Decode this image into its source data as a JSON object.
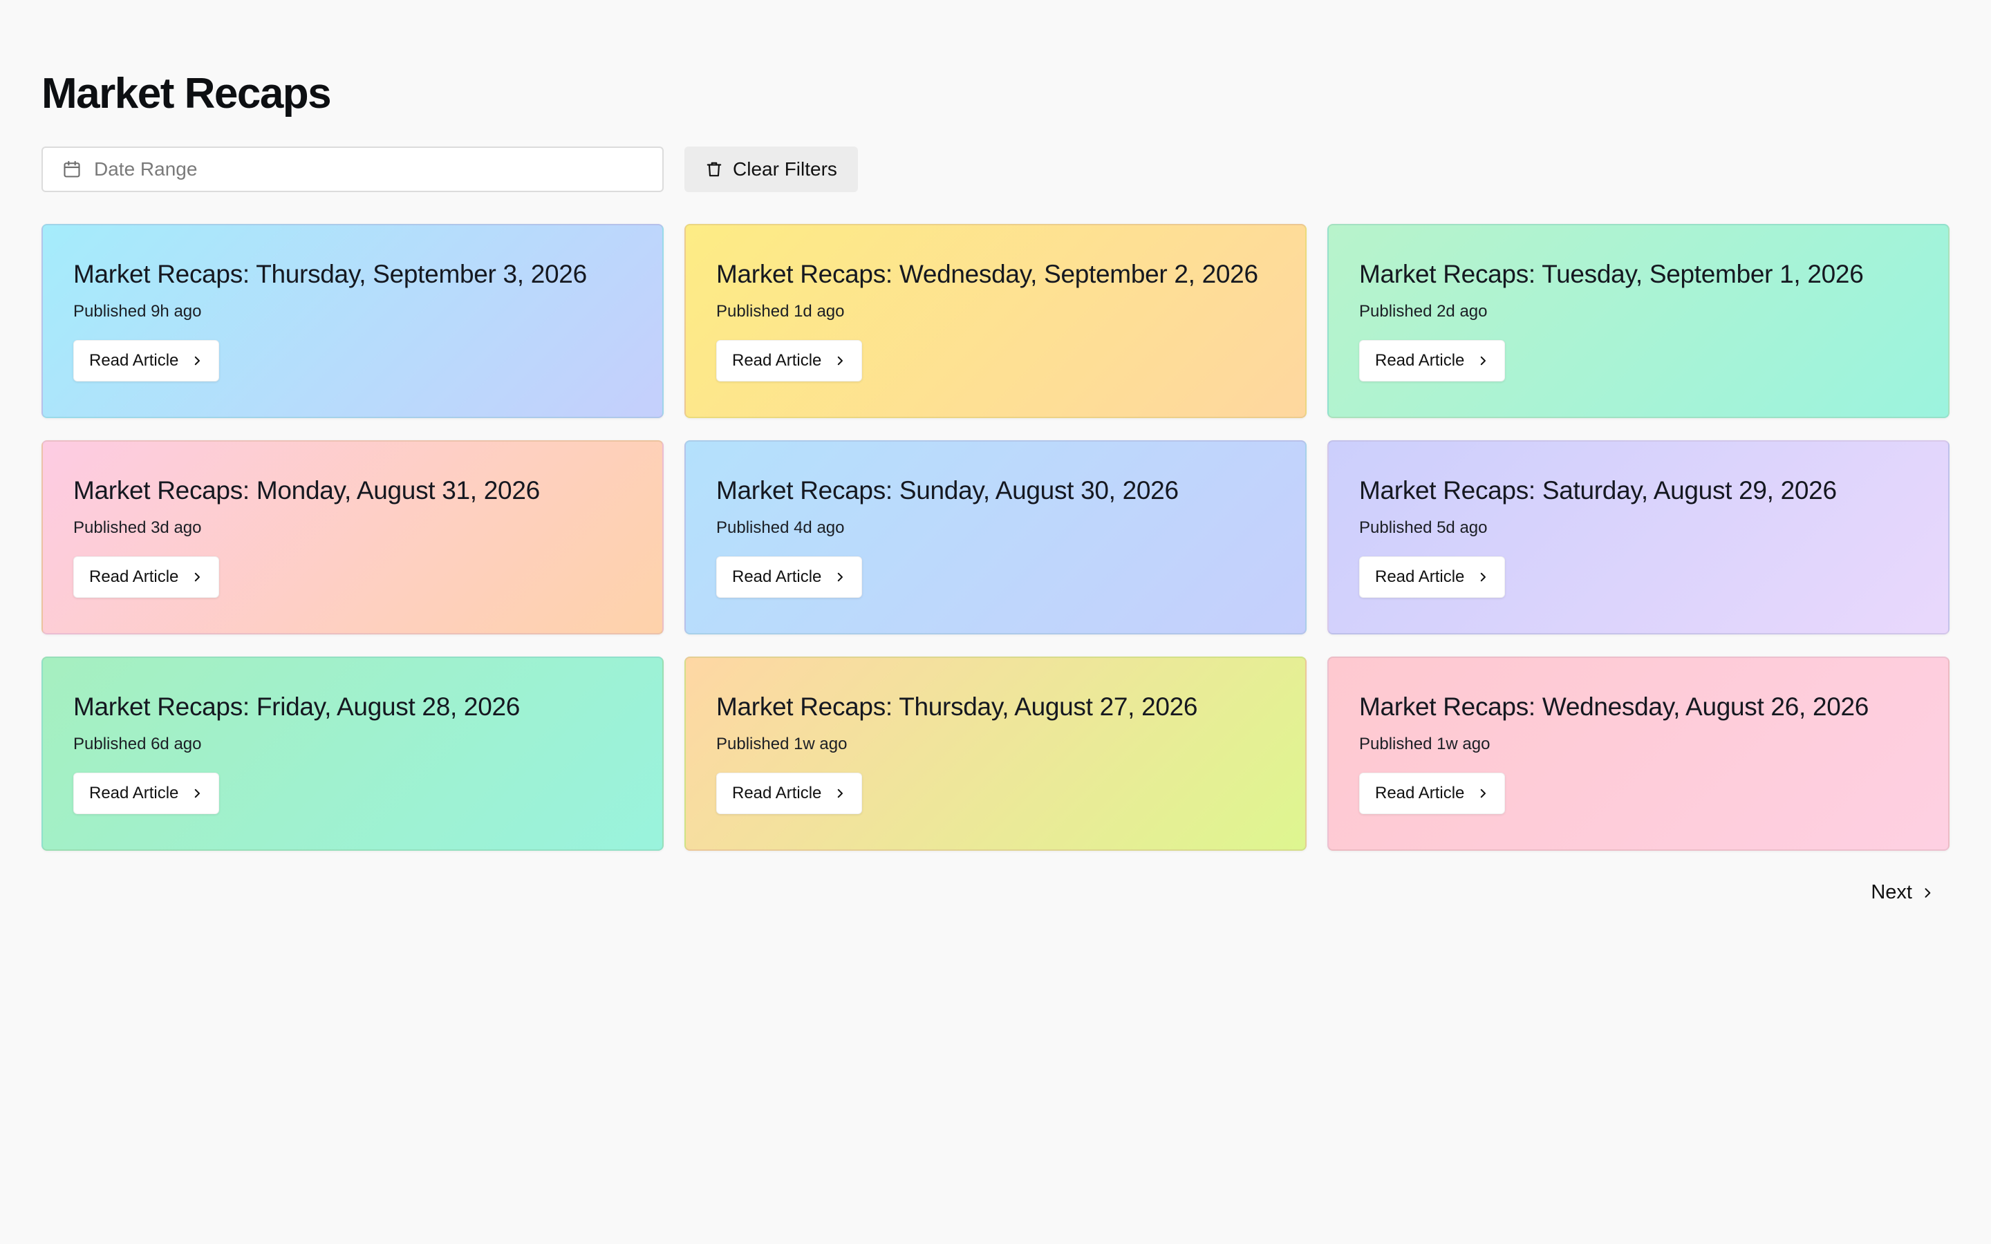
{
  "page": {
    "title": "Market Recaps"
  },
  "filters": {
    "date_range_placeholder": "Date Range",
    "clear_label": "Clear Filters",
    "calendar_icon": "calendar-icon",
    "clear_icon": "trash-icon"
  },
  "cards": [
    {
      "title": "Market Recaps: Thursday, September 3, 2026",
      "published": "Published 9h ago",
      "button_label": "Read Article",
      "gradient": [
        "#a5ecfb",
        "#c5cffc"
      ]
    },
    {
      "title": "Market Recaps: Wednesday, September 2, 2026",
      "published": "Published 1d ago",
      "button_label": "Read Article",
      "gradient": [
        "#fdec85",
        "#fed79f"
      ]
    },
    {
      "title": "Market Recaps: Tuesday, September 1, 2026",
      "published": "Published 2d ago",
      "button_label": "Read Article",
      "gradient": [
        "#b8f3cb",
        "#9cf3de"
      ]
    },
    {
      "title": "Market Recaps: Monday, August 31, 2026",
      "published": "Published 3d ago",
      "button_label": "Read Article",
      "gradient": [
        "#fdcce3",
        "#fed2aa"
      ]
    },
    {
      "title": "Market Recaps: Sunday, August 30, 2026",
      "published": "Published 4d ago",
      "button_label": "Read Article",
      "gradient": [
        "#b4e1fc",
        "#c6cffc"
      ]
    },
    {
      "title": "Market Recaps: Saturday, August 29, 2026",
      "published": "Published 5d ago",
      "button_label": "Read Article",
      "gradient": [
        "#cccffc",
        "#e9d8fc"
      ]
    },
    {
      "title": "Market Recaps: Friday, August 28, 2026",
      "published": "Published 6d ago",
      "button_label": "Read Article",
      "gradient": [
        "#a6efc0",
        "#9af3dd"
      ]
    },
    {
      "title": "Market Recaps: Thursday, August 27, 2026",
      "published": "Published 1w ago",
      "button_label": "Read Article",
      "gradient": [
        "#fed7a4",
        "#def690"
      ]
    },
    {
      "title": "Market Recaps: Wednesday, August 26, 2026",
      "published": "Published 1w ago",
      "button_label": "Read Article",
      "gradient": [
        "#fec9d0",
        "#fed0e2"
      ]
    }
  ],
  "pagination": {
    "next_label": "Next",
    "next_icon": "chevron-right-icon"
  }
}
